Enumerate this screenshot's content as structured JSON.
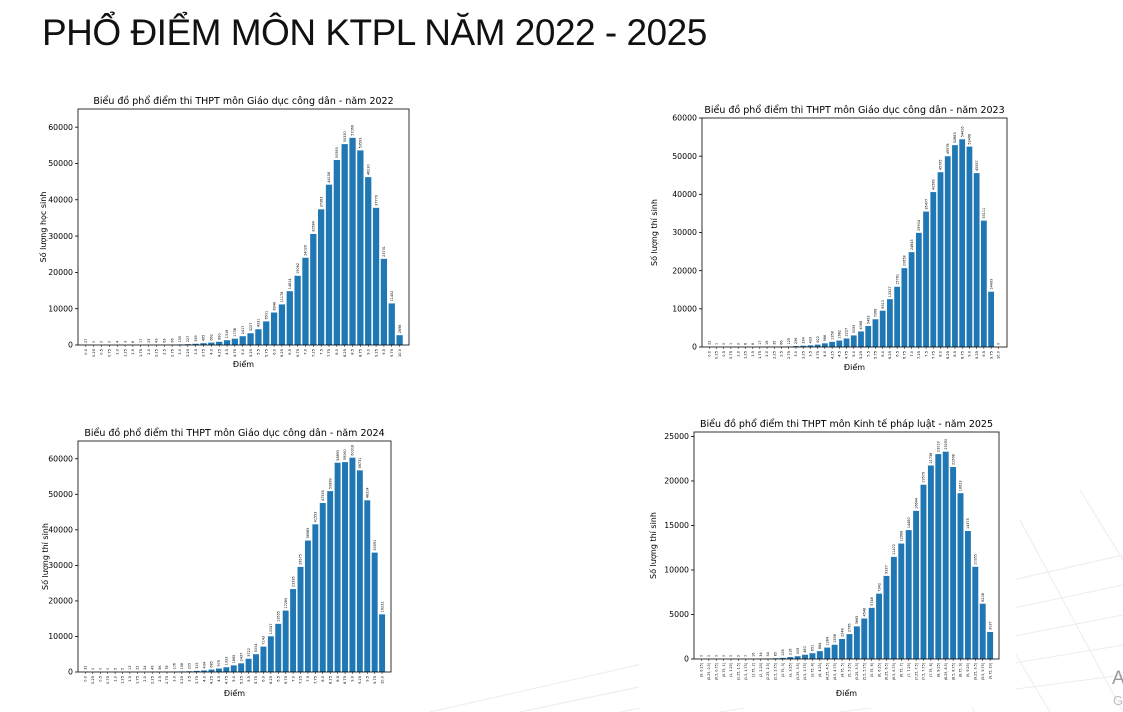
{
  "page": {
    "title": "PHỔ ĐIỂM MÔN KTPL NĂM 2022 - 2025",
    "corner_letter_1": "A",
    "corner_letter_2": "G"
  },
  "chart_data": [
    {
      "type": "bar",
      "title": "Biểu đồ phổ điểm thi THPT môn Giáo dục công dân - năm 2022",
      "xlabel": "Điểm",
      "ylabel": "Số lượng học sinh",
      "ylim": [
        0,
        65000
      ],
      "yticks": [
        0,
        10000,
        20000,
        30000,
        40000,
        50000,
        60000
      ],
      "grid": false,
      "categories": [
        "0.0",
        "0.25",
        "0.5",
        "0.75",
        "1.0",
        "1.25",
        "1.5",
        "1.75",
        "2.0",
        "2.25",
        "2.5",
        "2.75",
        "3.0",
        "3.25",
        "3.5",
        "3.75",
        "4.0",
        "4.25",
        "4.5",
        "4.75",
        "5.0",
        "5.25",
        "5.5",
        "5.75",
        "6.0",
        "6.25",
        "6.5",
        "6.75",
        "7.0",
        "7.25",
        "7.5",
        "7.75",
        "8.0",
        "8.25",
        "8.5",
        "8.75",
        "9.0",
        "9.25",
        "9.5",
        "9.75",
        "10.0"
      ],
      "values": [
        27,
        0,
        0,
        0,
        4,
        3,
        8,
        17,
        23,
        43,
        63,
        96,
        155,
        227,
        339,
        495,
        662,
        890,
        1318,
        1738,
        2417,
        3227,
        4331,
        6501,
        8948,
        11178,
        14814,
        19062,
        24029,
        30584,
        37363,
        44158,
        50953,
        55330,
        57066,
        53593,
        46230,
        37779,
        23731,
        11452,
        2698
      ]
    },
    {
      "type": "bar",
      "title": "Biểu đồ phổ điểm thi THPT môn Giáo dục công dân - năm 2023",
      "xlabel": "Điểm",
      "ylabel": "Số lượng thí sinh",
      "ylim": [
        0,
        60000
      ],
      "yticks": [
        0,
        10000,
        20000,
        30000,
        40000,
        50000,
        60000
      ],
      "grid": false,
      "categories": [
        "0.0",
        "0.25",
        "0.5",
        "0.75",
        "1.0",
        "1.25",
        "1.5",
        "1.75",
        "2.0",
        "2.25",
        "2.5",
        "2.75",
        "3.0",
        "3.25",
        "3.5",
        "3.75",
        "4.0",
        "4.25",
        "4.5",
        "4.75",
        "5.0",
        "5.25",
        "5.5",
        "5.75",
        "6.0",
        "6.25",
        "6.5",
        "6.75",
        "7.0",
        "7.25",
        "7.5",
        "7.75",
        "8.0",
        "8.25",
        "8.5",
        "8.75",
        "9.0",
        "9.25",
        "9.5",
        "9.75",
        "10.0"
      ],
      "values": [
        22,
        1,
        0,
        1,
        2,
        6,
        8,
        17,
        16,
        35,
        66,
        129,
        236,
        334,
        433,
        622,
        966,
        1358,
        1682,
        2227,
        3033,
        4068,
        5493,
        7268,
        9510,
        12527,
        15781,
        20658,
        24845,
        29904,
        35477,
        40589,
        45795,
        49978,
        52883,
        54416,
        52498,
        45557,
        33111,
        14493,
        0
      ]
    },
    {
      "type": "bar",
      "title": "Biểu đồ phổ điểm thi THPT môn Giáo dục công dân - năm 2024",
      "xlabel": "Điểm",
      "ylabel": "Số lượng thí sinh",
      "ylim": [
        0,
        65000
      ],
      "yticks": [
        0,
        10000,
        20000,
        30000,
        40000,
        50000,
        60000
      ],
      "grid": false,
      "categories": [
        "0.0",
        "0.25",
        "0.5",
        "0.75",
        "1.0",
        "1.25",
        "1.5",
        "1.75",
        "2.0",
        "2.25",
        "2.5",
        "2.75",
        "3.0",
        "3.25",
        "3.5",
        "3.75",
        "4.0",
        "4.25",
        "4.5",
        "4.75",
        "5.0",
        "5.25",
        "5.5",
        "5.75",
        "6.0",
        "6.25",
        "6.5",
        "6.75",
        "7.0",
        "7.25",
        "7.5",
        "7.75",
        "8.0",
        "8.25",
        "8.5",
        "8.75",
        "9.0",
        "9.25",
        "9.5",
        "9.75",
        "10.0"
      ],
      "values": [
        32,
        0,
        0,
        0,
        5,
        5,
        13,
        22,
        24,
        49,
        56,
        78,
        106,
        158,
        205,
        315,
        434,
        685,
        979,
        1333,
        1865,
        2437,
        3722,
        5004,
        7143,
        10047,
        13555,
        17285,
        23335,
        29575,
        36985,
        41553,
        47555,
        50899,
        58890,
        59060,
        60318,
        56731,
        48314,
        33591,
        16232
      ]
    },
    {
      "type": "bar",
      "title": "Biểu đồ phổ điểm thi THPT môn Kinh tế pháp luật - năm 2025",
      "xlabel": "Điểm",
      "ylabel": "Số lượng thí sinh",
      "ylim": [
        0,
        25500
      ],
      "yticks": [
        0,
        5000,
        10000,
        15000,
        20000,
        25000
      ],
      "grid": false,
      "categories": [
        "(0, 0.25]",
        "(0.25, 0.5]",
        "(0.5, 0.75]",
        "(0.75, 1]",
        "(1, 1.25]",
        "(1.25, 1.5]",
        "(1.5, 1.75]",
        "(1.75, 2]",
        "(2, 2.25]",
        "(2.25, 2.5]",
        "(2.5, 2.75]",
        "(2.75, 3]",
        "(3, 3.25]",
        "(3.25, 3.5]",
        "(3.5, 3.75]",
        "(3.75, 4]",
        "(4, 4.25]",
        "(4.25, 4.5]",
        "(4.5, 4.75]",
        "(4.75, 5]",
        "(5, 5.25]",
        "(5.25, 5.5]",
        "(5.5, 5.75]",
        "(5.75, 6]",
        "(6, 6.25]",
        "(6.25, 6.5]",
        "(6.5, 6.75]",
        "(6.75, 7]",
        "(7, 7.25]",
        "(7.25, 7.5]",
        "(7.5, 7.75]",
        "(7.75, 8]",
        "(8, 8.25]",
        "(8.25, 8.5]",
        "(8.5, 8.75]",
        "(8.75, 9]",
        "(9, 9.25]",
        "(9.25, 9.5]",
        "(9.5, 9.75]",
        "(9.75, 10]"
      ],
      "values": [
        0,
        0,
        0,
        0,
        0,
        2,
        7,
        16,
        34,
        54,
        85,
        128,
        216,
        309,
        480,
        651,
        884,
        1284,
        1598,
        2248,
        2796,
        3665,
        4548,
        5748,
        7342,
        9337,
        11472,
        12968,
        14480,
        16644,
        19579,
        21738,
        23019,
        23290,
        21568,
        18623,
        14375,
        10355,
        6208,
        3037
      ]
    }
  ]
}
